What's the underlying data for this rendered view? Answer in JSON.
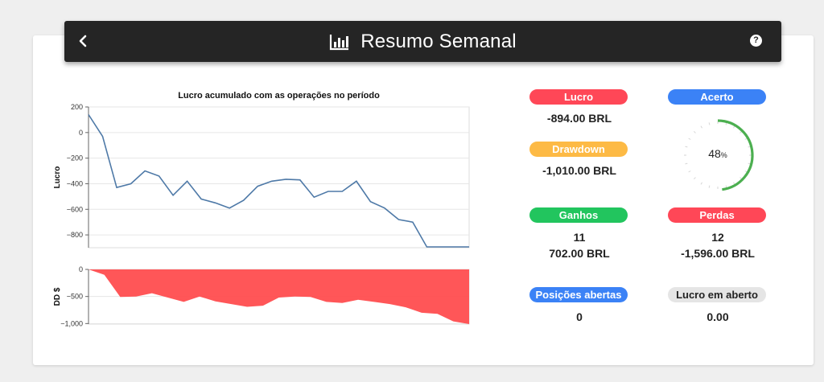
{
  "header": {
    "title": "Resumo Semanal",
    "back_icon": "chevron-left-icon",
    "chart_icon": "bar-chart-icon",
    "help_icon": "question-circle-icon"
  },
  "chart_data": [
    {
      "type": "line",
      "title": "Lucro acumulado com as operações no período",
      "ylabel": "Lucro",
      "xlabel": "",
      "ylim": [
        -900,
        200
      ],
      "yticks": [
        "200",
        "0",
        "−200",
        "−400",
        "−600",
        "−800"
      ],
      "color": "#4e79a7",
      "x": [
        0,
        1,
        2,
        3,
        4,
        5,
        6,
        7,
        8,
        9,
        10,
        11,
        12,
        13,
        14,
        15,
        16,
        17,
        18,
        19,
        20,
        21,
        22,
        23,
        24,
        25,
        26,
        27
      ],
      "y": [
        140,
        -30,
        -430,
        -400,
        -300,
        -340,
        -490,
        -380,
        -520,
        -550,
        -590,
        -530,
        -420,
        -380,
        -365,
        -370,
        -505,
        -460,
        -460,
        -380,
        -540,
        -590,
        -680,
        -700,
        -894,
        -894,
        -894,
        -894
      ]
    },
    {
      "type": "area",
      "title": "",
      "ylabel": "DD $",
      "xlabel": "",
      "ylim": [
        -1010,
        0
      ],
      "yticks": [
        "0",
        "−500",
        "−1,000"
      ],
      "color": "#ff4d4f",
      "x": [
        0,
        1,
        2,
        3,
        4,
        5,
        6,
        7,
        8,
        9,
        10,
        11,
        12,
        13,
        14,
        15,
        16,
        17,
        18,
        19,
        20,
        21,
        22,
        23,
        24
      ],
      "y": [
        0,
        -100,
        -510,
        -500,
        -440,
        -520,
        -600,
        -500,
        -590,
        -640,
        -690,
        -670,
        -520,
        -500,
        -510,
        -600,
        -620,
        -560,
        -600,
        -640,
        -700,
        -800,
        -820,
        -960,
        -1010
      ]
    }
  ],
  "stats": {
    "lucro": {
      "label": "Lucro",
      "value": "-894.00 BRL",
      "color": "#ff4757"
    },
    "drawdown": {
      "label": "Drawdown",
      "value": "-1,010.00 BRL",
      "color": "#fdba45"
    },
    "acerto": {
      "label": "Acerto",
      "percent": "48",
      "percent_sign": "%",
      "fraction": 0.48,
      "color": "#3b82f6",
      "arc_color": "#4caf50"
    },
    "ganhos": {
      "label": "Ganhos",
      "count": "11",
      "value": "702.00 BRL",
      "color": "#22c55e"
    },
    "perdas": {
      "label": "Perdas",
      "count": "12",
      "value": "-1,596.00 BRL",
      "color": "#ff4757"
    },
    "posicoes": {
      "label": "Posições abertas",
      "value": "0",
      "color": "#3b82f6"
    },
    "lucro_aberto": {
      "label": "Lucro em aberto",
      "value": "0.00",
      "color": "#e5e5e5"
    }
  }
}
